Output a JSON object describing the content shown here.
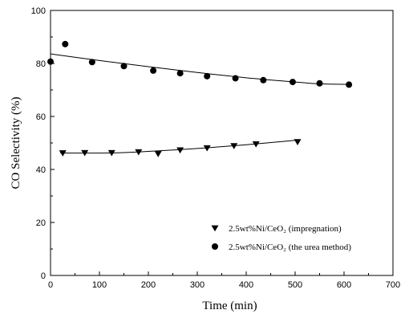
{
  "chart_data": {
    "type": "scatter",
    "xlabel": "Time (min)",
    "ylabel": "CO Selectivity (%)",
    "xlim": [
      0,
      700
    ],
    "ylim": [
      0,
      100
    ],
    "xticks": [
      "0",
      "100",
      "200",
      "300",
      "400",
      "500",
      "600",
      "700"
    ],
    "yticks": [
      "0",
      "20",
      "40",
      "60",
      "80",
      "100"
    ],
    "grid": false,
    "legend_position": "bottom-right",
    "series": [
      {
        "name": "2.5wt%Ni/CeO₂ (impregnation)",
        "marker": "triangle-down",
        "x": [
          25,
          70,
          125,
          180,
          220,
          265,
          320,
          375,
          420,
          505
        ],
        "y": [
          46.2,
          46.3,
          46.3,
          46.6,
          45.9,
          47.3,
          48.1,
          48.9,
          49.6,
          50.4
        ],
        "fit_line": {
          "x": [
            20,
            120,
            200,
            300,
            400,
            500
          ],
          "y": [
            46.2,
            46.2,
            46.8,
            47.9,
            49.3,
            51.0
          ]
        }
      },
      {
        "name": "2.5wt%Ni/CeO₂ (the urea method)",
        "marker": "circle",
        "x": [
          0,
          30,
          85,
          150,
          210,
          265,
          320,
          378,
          435,
          495,
          550,
          610
        ],
        "y": [
          80.7,
          87.3,
          80.5,
          79.0,
          77.3,
          76.3,
          75.2,
          74.4,
          73.7,
          73.0,
          72.5,
          72.0
        ],
        "fit_line": {
          "x": [
            0,
            100,
            200,
            300,
            400,
            500,
            550,
            615
          ],
          "y": [
            83.6,
            81.1,
            78.8,
            76.6,
            74.6,
            73.0,
            72.3,
            72.1
          ]
        }
      }
    ]
  }
}
